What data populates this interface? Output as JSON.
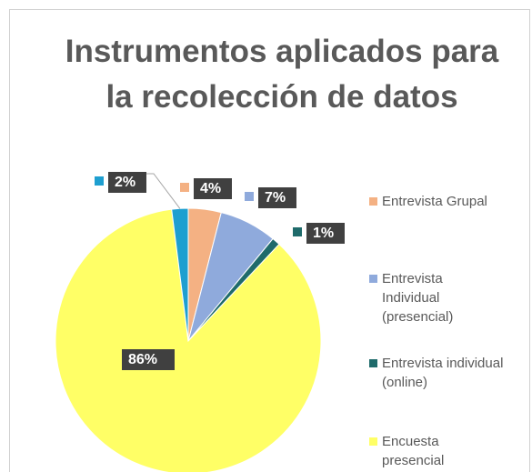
{
  "chart_data": {
    "type": "pie",
    "title": "Instrumentos aplicados para la recolección de datos",
    "categories": [
      "Entrevista Grupal",
      "Entrevista Individual (presencial)",
      "Entrevista individual (online)",
      "Encuesta presencial",
      null
    ],
    "values": [
      4,
      7,
      1,
      86,
      2
    ],
    "value_labels": [
      "4%",
      "7%",
      "1%",
      "86%",
      "2%"
    ],
    "colors": [
      "#f4b183",
      "#8faadc",
      "#1f6b6b",
      "#ffff66",
      "#1e9fd0"
    ],
    "legend": "right"
  }
}
